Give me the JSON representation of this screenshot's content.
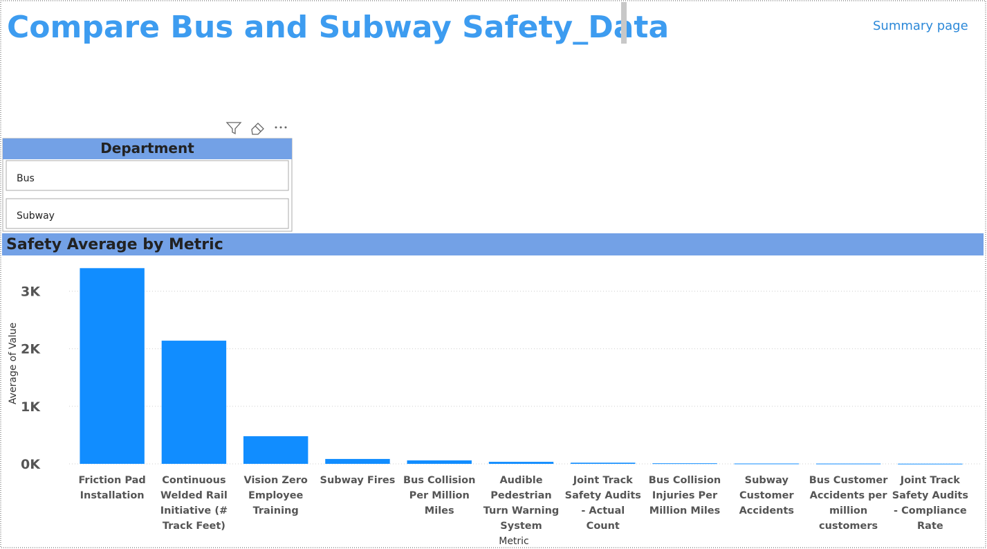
{
  "header": {
    "title": "Compare Bus and Subway Safety_Data",
    "link": "Summary page"
  },
  "slicer": {
    "title": "Department",
    "items": [
      "Bus",
      "Subway"
    ]
  },
  "chart_data": {
    "type": "bar",
    "title": "Safety Average by Metric",
    "x_label": "Metric",
    "y_label": "Average of Value",
    "categories": [
      "Friction Pad Installation",
      "Continuous Welded Rail Initiative (# Track Feet)",
      "Vision Zero Employee Training",
      "Subway Fires",
      "Bus Collision Per Million Miles",
      "Audible Pedestrian Turn Warning System",
      "Joint Track Safety Audits - Actual Count",
      "Bus Collision Injuries Per Million Miles",
      "Subway Customer Accidents",
      "Bus Customer Accidents per million customers",
      "Joint Track Safety Audits - Compliance Rate"
    ],
    "values": [
      3400,
      2140,
      480,
      85,
      60,
      35,
      20,
      10,
      6,
      5,
      3
    ],
    "color": "#118dff",
    "ylim": [
      0,
      3500
    ],
    "yticks": [
      {
        "value": 0,
        "label": "0K"
      },
      {
        "value": 1000,
        "label": "1K"
      },
      {
        "value": 2000,
        "label": "2K"
      },
      {
        "value": 3000,
        "label": "3K"
      }
    ],
    "grid": true
  }
}
